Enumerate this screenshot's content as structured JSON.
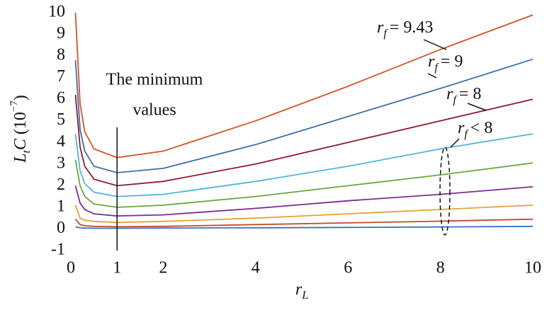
{
  "chart_data": {
    "type": "line",
    "x_label": {
      "var": "r",
      "sub": "L"
    },
    "y_label": {
      "var1": "L",
      "sub": "t",
      "var2": "C",
      "unit": "(10",
      "exp": "−7",
      "close": ")"
    },
    "x": [
      0.1,
      0.2,
      0.3,
      0.5,
      1,
      2,
      4,
      6,
      8,
      10
    ],
    "xlim": [
      0,
      10
    ],
    "ylim": [
      -1,
      10
    ],
    "xticks": [
      0,
      1,
      2,
      4,
      6,
      8,
      10
    ],
    "yticks": [
      -1,
      0,
      1,
      2,
      3,
      4,
      5,
      6,
      7,
      8,
      9,
      10
    ],
    "grid": false,
    "series": [
      {
        "color": "#d4532b",
        "values": [
          10,
          5.8,
          4.5,
          3.7,
          3.3,
          3.6,
          5.0,
          6.6,
          8.3,
          9.9
        ]
      },
      {
        "color": "#3c6fa8",
        "values": [
          7.8,
          4.6,
          3.6,
          2.9,
          2.6,
          2.8,
          3.9,
          5.2,
          6.5,
          7.85
        ]
      },
      {
        "color": "#8e1b2e",
        "values": [
          6.2,
          3.8,
          2.9,
          2.3,
          2.0,
          2.2,
          3.0,
          4.0,
          5.0,
          6.0
        ]
      },
      {
        "color": "#4db6d8",
        "values": [
          4.4,
          2.7,
          2.1,
          1.7,
          1.5,
          1.6,
          2.2,
          2.9,
          3.7,
          4.4
        ]
      },
      {
        "color": "#6aa83e",
        "values": [
          3.2,
          2.0,
          1.5,
          1.15,
          1.0,
          1.1,
          1.5,
          2.0,
          2.5,
          3.05
        ]
      },
      {
        "color": "#7b2d8e",
        "values": [
          2.0,
          1.2,
          0.9,
          0.7,
          0.6,
          0.65,
          0.95,
          1.3,
          1.6,
          1.95
        ]
      },
      {
        "color": "#e2a334",
        "values": [
          1.1,
          0.5,
          0.4,
          0.35,
          0.3,
          0.35,
          0.5,
          0.7,
          0.9,
          1.1
        ]
      },
      {
        "color": "#c44a2a",
        "values": [
          0.45,
          0.2,
          0.15,
          0.12,
          0.1,
          0.12,
          0.2,
          0.28,
          0.36,
          0.45
        ]
      },
      {
        "color": "#3a70c8",
        "values": [
          0.1,
          0.05,
          0.04,
          0.03,
          0.03,
          0.04,
          0.05,
          0.07,
          0.09,
          0.12
        ]
      }
    ],
    "reference_line": {
      "x": 1,
      "ylim": [
        -1,
        4.7
      ]
    },
    "annotations": [
      {
        "var": "r",
        "sub": "f",
        "text": "= 9.43"
      },
      {
        "var": "r",
        "sub": "f",
        "text": "= 9"
      },
      {
        "var": "r",
        "sub": "f",
        "text": "= 8"
      },
      {
        "var": "r",
        "sub": "f",
        "text": "< 8"
      }
    ],
    "minimum_label": [
      "The minimum",
      "values"
    ]
  }
}
